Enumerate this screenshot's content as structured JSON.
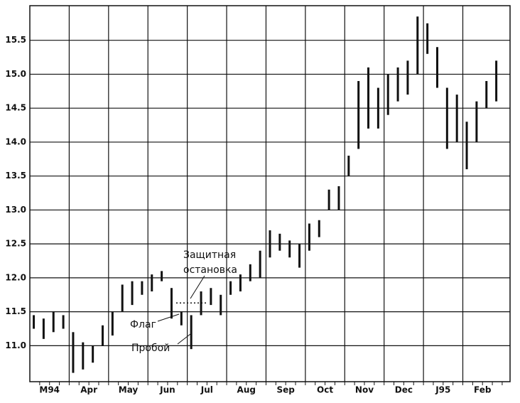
{
  "chart_data": {
    "type": "range-bar",
    "categories": [
      "M94",
      "Apr",
      "May",
      "Jun",
      "Jul",
      "Aug",
      "Sep",
      "Oct",
      "Nov",
      "Dec",
      "J95",
      "Feb"
    ],
    "xlim": [
      0,
      12.2
    ],
    "ylim": [
      10.47,
      16.01
    ],
    "yticks": [
      {
        "value": 11.0,
        "label": "11.0"
      },
      {
        "value": 11.5,
        "label": "11.5"
      },
      {
        "value": 12.0,
        "label": "12.0"
      },
      {
        "value": 12.5,
        "label": "12.5"
      },
      {
        "value": 13.0,
        "label": "13.0"
      },
      {
        "value": 13.5,
        "label": "13.5"
      },
      {
        "value": 14.0,
        "label": "14.0"
      },
      {
        "value": 14.5,
        "label": "14.5"
      },
      {
        "value": 15.0,
        "label": "15.0"
      },
      {
        "value": 15.5,
        "label": "15.5"
      }
    ],
    "grid": true,
    "color": "#111111",
    "x": [
      0.1,
      0.35,
      0.6,
      0.85,
      1.1,
      1.35,
      1.6,
      1.85,
      2.1,
      2.35,
      2.6,
      2.85,
      3.1,
      3.35,
      3.6,
      3.85,
      4.1,
      4.35,
      4.6,
      4.85,
      5.1,
      5.35,
      5.6,
      5.85,
      6.1,
      6.35,
      6.6,
      6.85,
      7.1,
      7.35,
      7.6,
      7.85,
      8.1,
      8.35,
      8.6,
      8.85,
      9.1,
      9.35,
      9.6,
      9.85,
      10.1,
      10.35,
      10.6,
      10.85,
      11.1,
      11.35,
      11.6,
      11.85
    ],
    "high": [
      11.45,
      11.4,
      11.5,
      11.45,
      11.2,
      11.05,
      11.0,
      11.3,
      11.5,
      11.9,
      11.95,
      11.95,
      12.05,
      12.1,
      11.85,
      11.5,
      11.45,
      11.8,
      11.85,
      11.75,
      11.95,
      12.05,
      12.2,
      12.4,
      12.7,
      12.65,
      12.55,
      12.5,
      12.8,
      12.85,
      13.3,
      13.35,
      13.8,
      14.9,
      15.1,
      14.8,
      15.0,
      15.1,
      15.2,
      15.85,
      15.75,
      15.4,
      14.8,
      14.7,
      14.3,
      14.6,
      14.9,
      15.2
    ],
    "low": [
      11.25,
      11.1,
      11.2,
      11.25,
      10.6,
      10.65,
      10.75,
      11.0,
      11.15,
      11.5,
      11.6,
      11.75,
      11.8,
      11.95,
      11.4,
      11.3,
      10.95,
      11.45,
      11.6,
      11.45,
      11.75,
      11.8,
      11.95,
      12.0,
      12.3,
      12.4,
      12.3,
      12.15,
      12.4,
      12.6,
      13.0,
      13.0,
      13.5,
      13.9,
      14.2,
      14.2,
      14.4,
      14.6,
      14.7,
      15.0,
      15.3,
      14.8,
      13.9,
      14.0,
      13.6,
      14.0,
      14.5,
      14.6
    ],
    "stop_level": 11.63,
    "annotations": [
      "Защитная",
      "остановка",
      "Флаг",
      "Пробой"
    ]
  }
}
